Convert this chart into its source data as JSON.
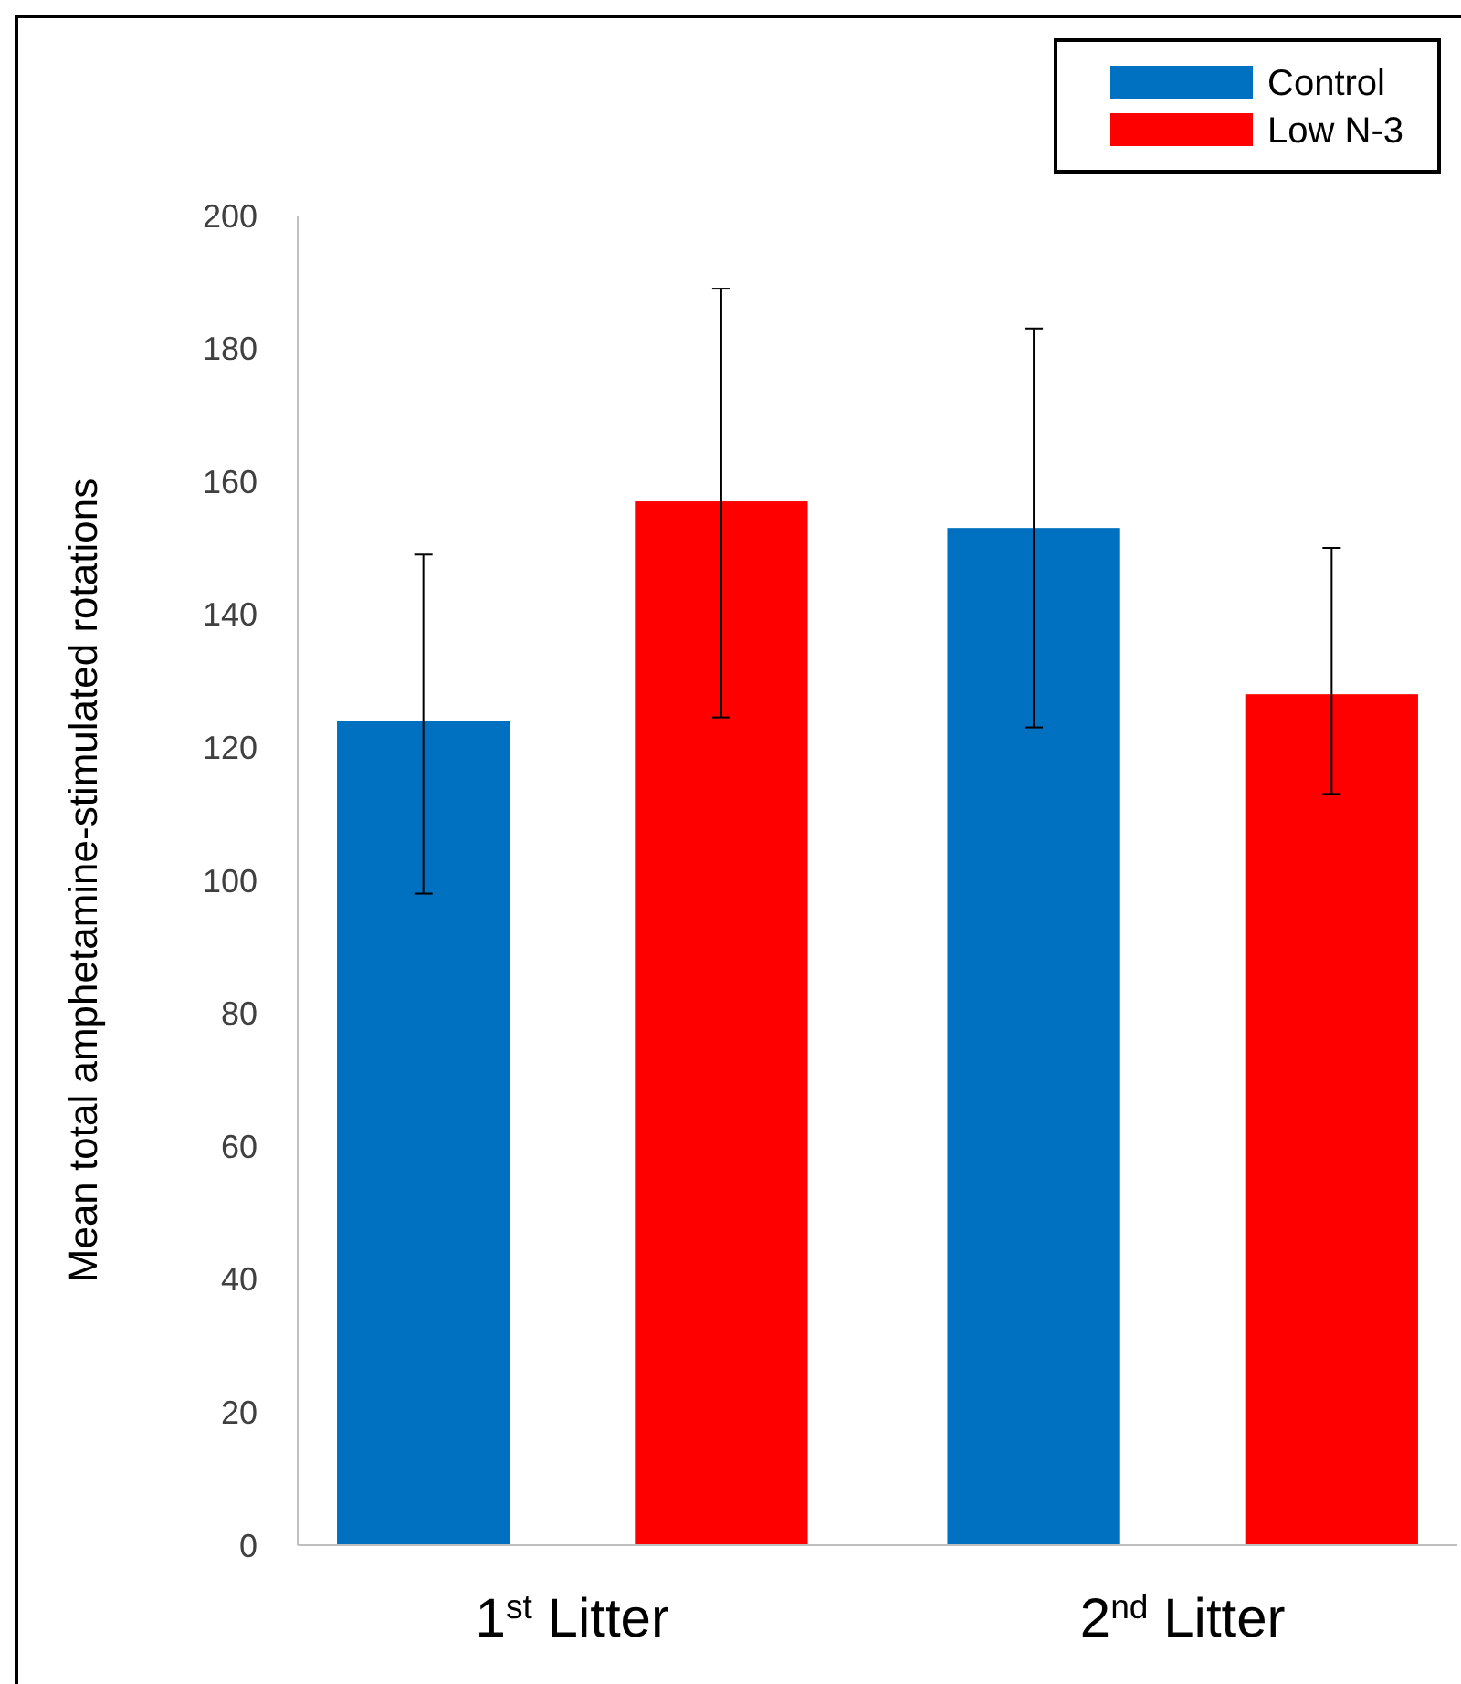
{
  "chart_data": {
    "type": "bar",
    "ylabel": "Mean total amphetamine-stimulated rotations",
    "categories": [
      "1$^{st}$ Litter",
      "2$^{nd}$ Litter"
    ],
    "series": [
      {
        "name": "Control",
        "color": "#0070c0",
        "values": [
          124,
          153
        ],
        "errors": [
          [
            98,
            149
          ],
          [
            123,
            183
          ]
        ]
      },
      {
        "name": "Low N-3",
        "color": "#ff0000",
        "values": [
          157,
          128
        ],
        "errors": [
          [
            124.5,
            189
          ],
          [
            113,
            150
          ]
        ]
      }
    ],
    "ylim": [
      0,
      200
    ],
    "yticks": [
      0,
      20,
      40,
      60,
      80,
      100,
      120,
      140,
      160,
      180,
      200
    ],
    "grid": false,
    "legend": "top right"
  }
}
